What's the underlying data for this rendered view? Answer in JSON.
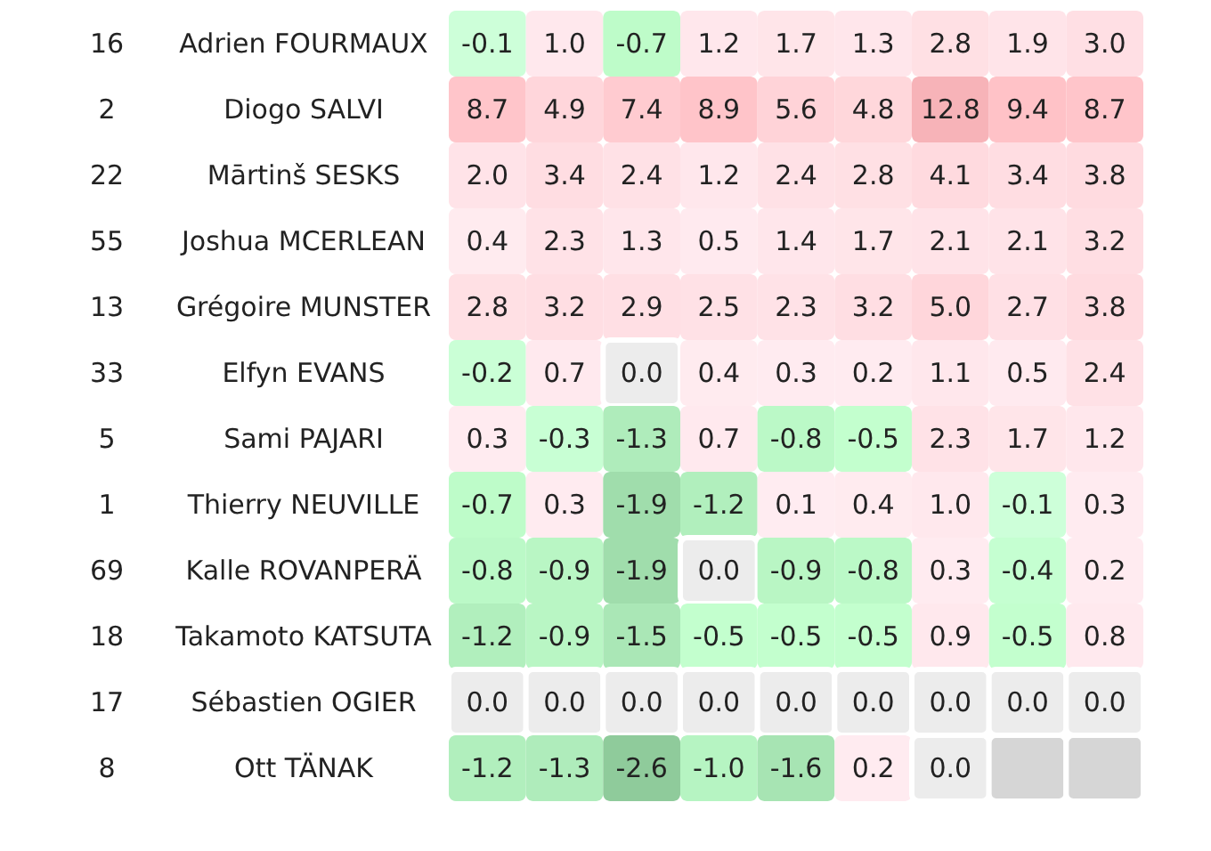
{
  "chart_data": {
    "type": "heatmap",
    "categories": [
      null,
      null,
      null,
      null,
      null,
      null,
      null,
      null,
      null
    ],
    "y_categories": [
      "Adrien FOURMAUX",
      "Diogo SALVI",
      "Mārtinš SESKS",
      "Joshua MCERLEAN",
      "Grégoire MUNSTER",
      "Elfyn EVANS",
      "Sami PAJARI",
      "Thierry NEUVILLE",
      "Kalle ROVANPERÄ",
      "Takamoto KATSUTA",
      "Sébastien OGIER",
      "Ott TÄNAK"
    ],
    "y2_categories": [
      "16",
      "2",
      "22",
      "55",
      "13",
      "33",
      "5",
      "1",
      "69",
      "18",
      "17",
      "8"
    ],
    "cells": [
      [
        -0.1,
        1.0,
        -0.7,
        1.2,
        1.7,
        1.3,
        2.8,
        1.9,
        3.0
      ],
      [
        8.7,
        4.9,
        7.4,
        8.9,
        5.6,
        4.8,
        12.8,
        9.4,
        8.7
      ],
      [
        2.0,
        3.4,
        2.4,
        1.2,
        2.4,
        2.8,
        4.1,
        3.4,
        3.8
      ],
      [
        0.4,
        2.3,
        1.3,
        0.5,
        1.4,
        1.7,
        2.1,
        2.1,
        3.2
      ],
      [
        2.8,
        3.2,
        2.9,
        2.5,
        2.3,
        3.2,
        5.0,
        2.7,
        3.8
      ],
      [
        -0.2,
        0.7,
        0.0,
        0.4,
        0.3,
        0.2,
        1.1,
        0.5,
        2.4
      ],
      [
        0.3,
        -0.3,
        -1.3,
        0.7,
        -0.8,
        -0.5,
        2.3,
        1.7,
        1.2
      ],
      [
        -0.7,
        0.3,
        -1.9,
        -1.2,
        0.1,
        0.4,
        1.0,
        -0.1,
        0.3
      ],
      [
        -0.8,
        -0.9,
        -1.9,
        0.0,
        -0.9,
        -0.8,
        0.3,
        -0.4,
        0.2
      ],
      [
        -1.2,
        -0.9,
        -1.5,
        -0.5,
        -0.5,
        -0.5,
        0.9,
        -0.5,
        0.8
      ],
      [
        0.0,
        0.0,
        0.0,
        0.0,
        0.0,
        0.0,
        0.0,
        0.0,
        0.0
      ],
      [
        -1.2,
        -1.3,
        -2.6,
        -1.0,
        -1.6,
        0.2,
        0.0,
        null,
        null
      ]
    ],
    "cell_labels": [
      [
        "-0.1",
        "1.0",
        "-0.7",
        "1.2",
        "1.7",
        "1.3",
        "2.8",
        "1.9",
        "3.0"
      ],
      [
        "8.7",
        "4.9",
        "7.4",
        "8.9",
        "5.6",
        "4.8",
        "12.8",
        "9.4",
        "8.7"
      ],
      [
        "2.0",
        "3.4",
        "2.4",
        "1.2",
        "2.4",
        "2.8",
        "4.1",
        "3.4",
        "3.8"
      ],
      [
        "0.4",
        "2.3",
        "1.3",
        "0.5",
        "1.4",
        "1.7",
        "2.1",
        "2.1",
        "3.2"
      ],
      [
        "2.8",
        "3.2",
        "2.9",
        "2.5",
        "2.3",
        "3.2",
        "5.0",
        "2.7",
        "3.8"
      ],
      [
        "-0.2",
        "0.7",
        "0.0",
        "0.4",
        "0.3",
        "0.2",
        "1.1",
        "0.5",
        "2.4"
      ],
      [
        "0.3",
        "-0.3",
        "-1.3",
        "0.7",
        "-0.8",
        "-0.5",
        "2.3",
        "1.7",
        "1.2"
      ],
      [
        "-0.7",
        "0.3",
        "-1.9",
        "-1.2",
        "0.1",
        "0.4",
        "1.0",
        "-0.1",
        "0.3"
      ],
      [
        "-0.8",
        "-0.9",
        "-1.9",
        "0.0",
        "-0.9",
        "-0.8",
        "0.3",
        "-0.4",
        "0.2"
      ],
      [
        "-1.2",
        "-0.9",
        "-1.5",
        "-0.5",
        "-0.5",
        "-0.5",
        "0.9",
        "-0.5",
        "0.8"
      ],
      [
        "0.0",
        "0.0",
        "0.0",
        "0.0",
        "0.0",
        "0.0",
        "0.0",
        "0.0",
        "0.0"
      ],
      [
        "-1.2",
        "-1.3",
        "-2.6",
        "-1.0",
        "-1.6",
        "0.2",
        "0.0",
        null,
        null
      ]
    ]
  }
}
